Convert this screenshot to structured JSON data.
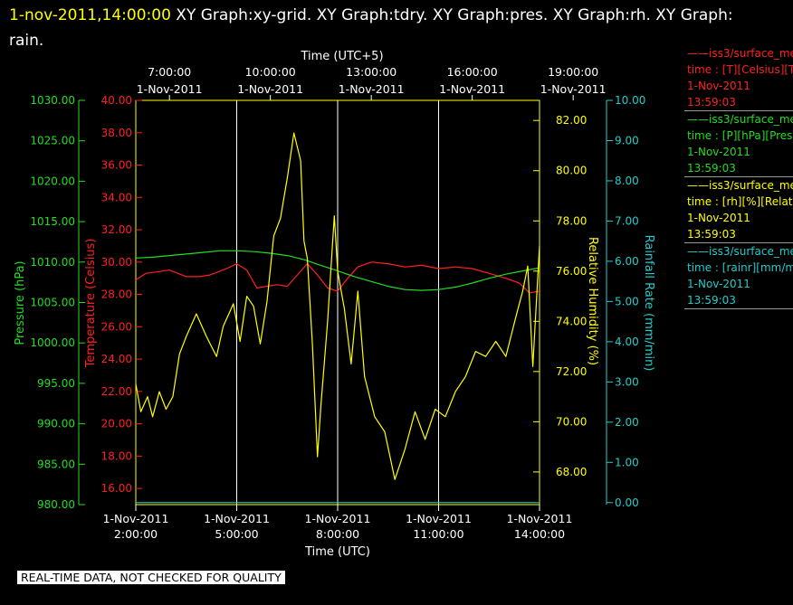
{
  "header": {
    "timestamp": "1-nov-2011,14:00:00",
    "title_rest": " XY Graph:xy-grid.  XY Graph:tdry.  XY Graph:pres.  XY Graph:rh.  XY Graph: rain."
  },
  "legend": [
    {
      "name": "iss3/surface_me",
      "line1": "time : [T][Celsius][T",
      "date": "1-Nov-2011",
      "time": "13:59:03",
      "color": "#ff2020"
    },
    {
      "name": "iss3/surface_me",
      "line1": "time : [P][hPa][Pres",
      "date": "1-Nov-2011",
      "time": "13:59:03",
      "color": "#22dd22"
    },
    {
      "name": "iss3/surface_me",
      "line1": "time : [rh][%][Relati",
      "date": "1-Nov-2011",
      "time": "13:59:03",
      "color": "#ffff00"
    },
    {
      "name": "iss3/surface_me",
      "line1": "time : [rainr][mm/mi",
      "date": "1-Nov-2011",
      "time": "13:59:03",
      "color": "#22cccc"
    }
  ],
  "footer": "REAL-TIME DATA, NOT CHECKED FOR QUALITY",
  "colors": {
    "temperature": "#ff2020",
    "pressure": "#22dd22",
    "humidity": "#ffff00",
    "rain": "#22cccc",
    "grid": "#ffffff",
    "frame": "#ffff00"
  },
  "chart_data": {
    "type": "line",
    "grid": true,
    "top_axis": {
      "label": "Time (UTC+5)",
      "ticks": [
        {
          "time": "7:00:00",
          "date": "1-Nov-2011"
        },
        {
          "time": "10:00:00",
          "date": "1-Nov-2011"
        },
        {
          "time": "13:00:00",
          "date": "1-Nov-2011"
        },
        {
          "time": "16:00:00",
          "date": "1-Nov-2011"
        },
        {
          "time": "19:00:00",
          "date": "1-Nov-2011"
        }
      ]
    },
    "x_axis": {
      "label": "Time (UTC)",
      "range_hours": [
        2,
        14
      ],
      "ticks": [
        {
          "hour": 2,
          "date": "1-Nov-2011",
          "time": "2:00:00"
        },
        {
          "hour": 5,
          "date": "1-Nov-2011",
          "time": "5:00:00"
        },
        {
          "hour": 8,
          "date": "1-Nov-2011",
          "time": "8:00:00"
        },
        {
          "hour": 11,
          "date": "1-Nov-2011",
          "time": "11:00:00"
        },
        {
          "hour": 14,
          "date": "1-Nov-2011",
          "time": "14:00:00"
        }
      ]
    },
    "pressure_axis": {
      "label": "Pressure (hPa)",
      "range": [
        980,
        1030
      ],
      "ticks": [
        "1030.00",
        "1025.00",
        "1020.00",
        "1015.00",
        "1010.00",
        "1005.00",
        "1000.00",
        "995.00",
        "990.00",
        "985.00",
        "980.00"
      ]
    },
    "temperature_axis": {
      "label": "Temperature (Celsius)",
      "range": [
        15,
        40
      ],
      "ticks": [
        "40.00",
        "38.00",
        "36.00",
        "34.00",
        "32.00",
        "30.00",
        "28.00",
        "26.00",
        "24.00",
        "22.00",
        "20.00",
        "18.00",
        "16.00"
      ]
    },
    "humidity_axis": {
      "label": "Relative Humidity (%)",
      "range": [
        66.7,
        82.8
      ],
      "ticks": [
        "82.00",
        "80.00",
        "78.00",
        "76.00",
        "74.00",
        "72.00",
        "70.00",
        "68.00"
      ]
    },
    "rain_axis": {
      "label": "Rainfall Rate (mm/min)",
      "range": [
        -0.05,
        10
      ],
      "ticks": [
        "10.00",
        "9.00",
        "8.00",
        "7.00",
        "6.00",
        "5.00",
        "4.00",
        "3.00",
        "2.00",
        "1.00",
        "0.00"
      ]
    },
    "series": [
      {
        "name": "Temperature",
        "axis": "temperature",
        "x": [
          2.0,
          2.3,
          3.0,
          3.5,
          3.9,
          4.2,
          4.7,
          5.0,
          5.3,
          5.6,
          5.9,
          6.2,
          6.5,
          6.8,
          7.1,
          7.4,
          7.7,
          8.0,
          8.3,
          8.6,
          9.0,
          9.5,
          10.0,
          10.5,
          11.0,
          11.5,
          12.0,
          12.5,
          13.0,
          13.4,
          13.7,
          14.0
        ],
        "values": [
          28.9,
          29.3,
          29.5,
          29.1,
          29.1,
          29.2,
          29.6,
          29.9,
          29.5,
          28.4,
          28.5,
          28.6,
          28.5,
          29.2,
          29.9,
          29.2,
          28.4,
          28.2,
          29.0,
          29.7,
          30.0,
          29.9,
          29.7,
          29.8,
          29.6,
          29.7,
          29.6,
          29.3,
          29.0,
          28.7,
          28.1,
          28.2
        ]
      },
      {
        "name": "Pressure",
        "axis": "pressure",
        "x": [
          2.0,
          2.5,
          3.0,
          3.5,
          4.0,
          4.5,
          5.0,
          5.5,
          6.0,
          6.5,
          7.0,
          7.5,
          8.0,
          8.5,
          9.0,
          9.5,
          10.0,
          10.5,
          11.0,
          11.5,
          12.0,
          12.5,
          13.0,
          13.5,
          14.0
        ],
        "values": [
          1010.5,
          1010.6,
          1010.8,
          1011.0,
          1011.2,
          1011.4,
          1011.4,
          1011.3,
          1011.1,
          1010.8,
          1010.3,
          1009.6,
          1008.9,
          1008.2,
          1007.6,
          1007.0,
          1006.6,
          1006.5,
          1006.6,
          1006.9,
          1007.4,
          1008.0,
          1008.5,
          1008.9,
          1009.3
        ]
      },
      {
        "name": "Relative Humidity",
        "axis": "humidity",
        "x": [
          2.0,
          2.15,
          2.35,
          2.5,
          2.7,
          2.9,
          3.1,
          3.3,
          3.5,
          3.8,
          4.1,
          4.4,
          4.6,
          4.9,
          5.1,
          5.3,
          5.5,
          5.7,
          5.9,
          6.1,
          6.3,
          6.5,
          6.7,
          6.9,
          7.0,
          7.1,
          7.25,
          7.4,
          7.5,
          7.7,
          7.9,
          8.0,
          8.2,
          8.4,
          8.6,
          8.8,
          9.1,
          9.4,
          9.7,
          10.0,
          10.3,
          10.6,
          10.9,
          11.2,
          11.5,
          11.8,
          12.1,
          12.4,
          12.7,
          13.0,
          13.3,
          13.5,
          13.65,
          13.8,
          13.95,
          14.0
        ],
        "values": [
          71.5,
          70.4,
          71.0,
          70.2,
          71.2,
          70.5,
          71.0,
          72.7,
          73.4,
          74.3,
          73.4,
          72.6,
          73.8,
          74.7,
          73.2,
          75.0,
          74.6,
          73.1,
          74.8,
          77.4,
          78.1,
          79.7,
          81.5,
          80.4,
          77.2,
          76.5,
          73.1,
          68.6,
          70.6,
          74.0,
          78.2,
          76.0,
          74.5,
          72.3,
          75.2,
          71.8,
          70.2,
          69.6,
          67.7,
          68.9,
          70.4,
          69.3,
          70.5,
          70.2,
          71.2,
          71.8,
          72.8,
          72.6,
          73.2,
          72.6,
          74.2,
          75.2,
          76.2,
          72.2,
          75.8,
          77.0
        ]
      },
      {
        "name": "Rainfall Rate",
        "axis": "rain",
        "x": [
          2.0,
          14.0
        ],
        "values": [
          0.0,
          0.0
        ]
      }
    ]
  }
}
